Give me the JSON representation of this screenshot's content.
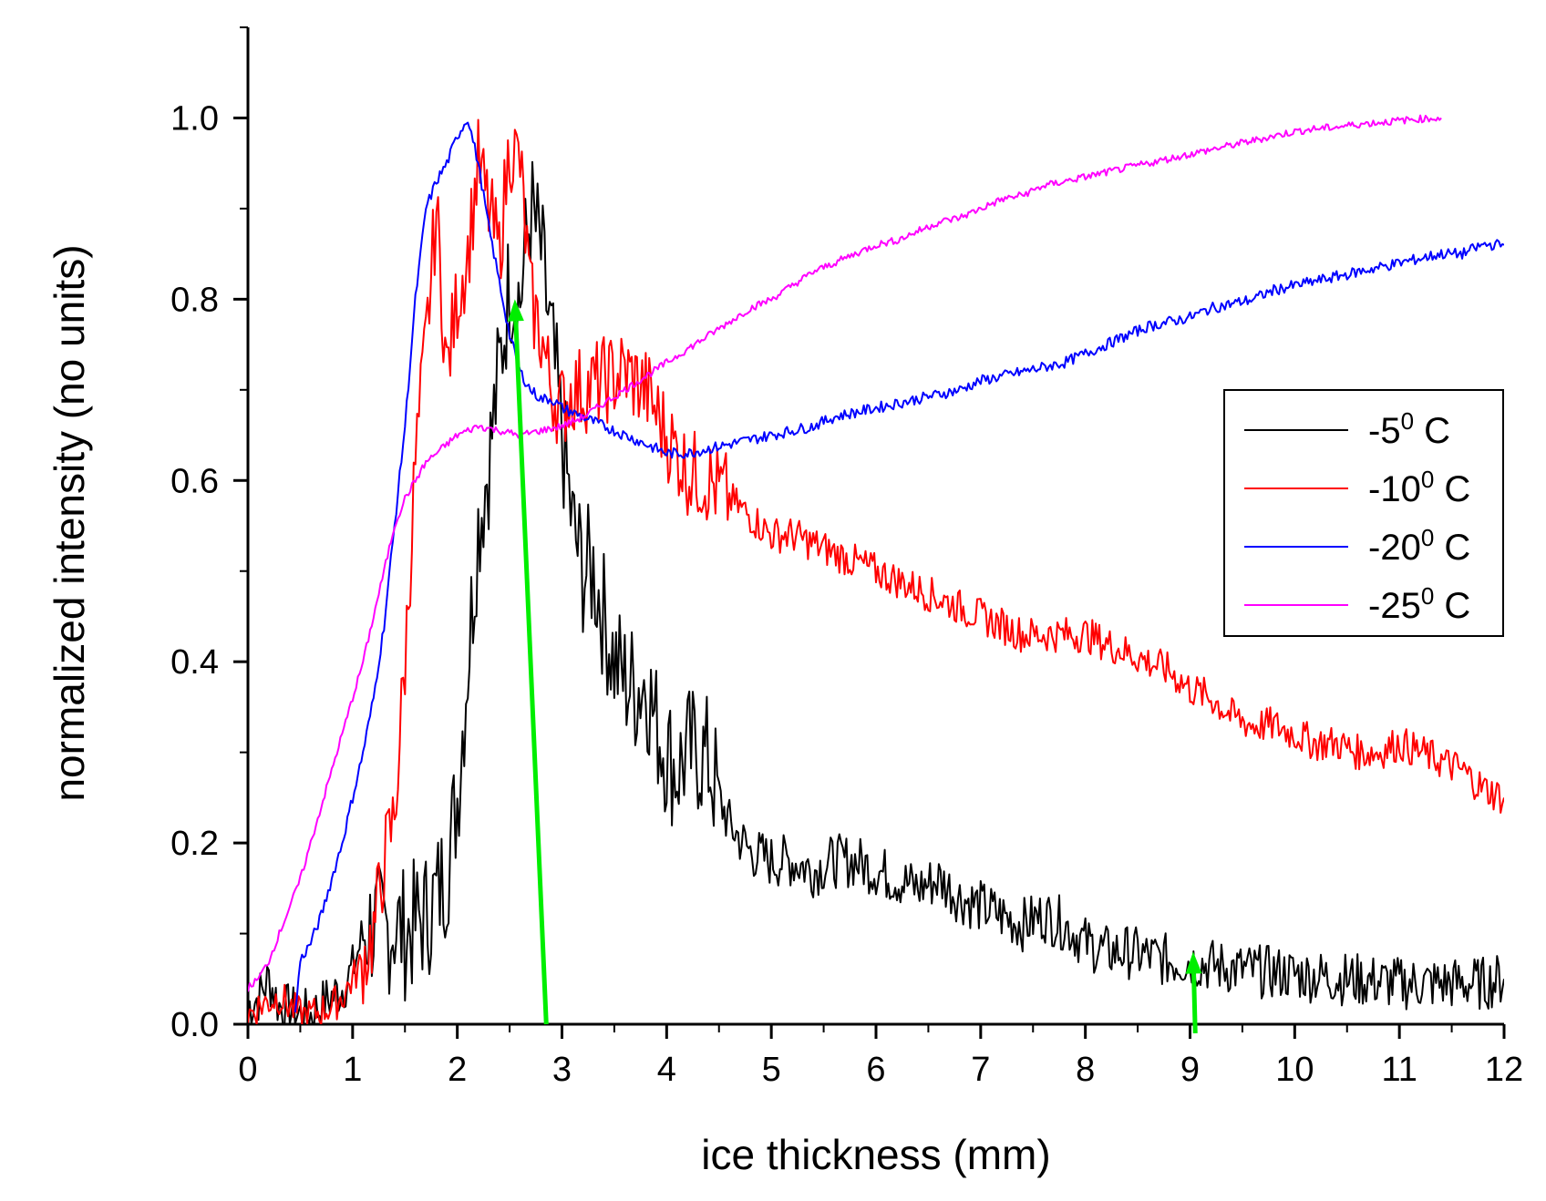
{
  "chart_data": {
    "type": "line",
    "title": "",
    "xlabel": "ice thickness (mm)",
    "ylabel": "normalized intensity (no units)",
    "xlim": [
      0,
      12
    ],
    "ylim": [
      0,
      1.1
    ],
    "xticks": [
      0,
      1,
      2,
      3,
      4,
      5,
      6,
      7,
      8,
      9,
      10,
      11,
      12
    ],
    "xtick_labels": [
      "0",
      "1",
      "2",
      "3",
      "4",
      "5",
      "6",
      "7",
      "8",
      "9",
      "10",
      "11",
      "12"
    ],
    "yticks": [
      0.0,
      0.2,
      0.4,
      0.6,
      0.8,
      1.0
    ],
    "ytick_labels": [
      "0.0",
      "0.2",
      "0.4",
      "0.6",
      "0.8",
      "1.0"
    ],
    "legend_position": "right",
    "grid": false,
    "series": [
      {
        "name": "-5",
        "legend_base": "-5",
        "legend_sup": "0",
        "legend_unit": " C",
        "color": "#000000",
        "x": [
          0,
          0.1,
          0.2,
          0.3,
          0.4,
          0.5,
          0.6,
          0.7,
          0.8,
          0.9,
          1.0,
          1.1,
          1.2,
          1.3,
          1.4,
          1.5,
          1.6,
          1.7,
          1.8,
          1.9,
          2.0,
          2.1,
          2.2,
          2.3,
          2.4,
          2.5,
          2.6,
          2.7,
          2.8,
          2.9,
          3.0,
          3.1,
          3.2,
          3.3,
          3.4,
          3.5,
          3.6,
          3.7,
          3.8,
          3.9,
          4.0,
          4.1,
          4.2,
          4.3,
          4.4,
          4.5,
          4.6,
          4.8,
          5.0,
          5.2,
          5.4,
          5.6,
          5.8,
          6.0,
          6.2,
          6.4,
          6.6,
          6.8,
          7.0,
          7.2,
          7.4,
          7.6,
          7.8,
          8.0,
          8.2,
          8.4,
          8.6,
          8.8,
          9.0,
          9.2,
          9.5,
          10.0,
          10.5,
          11.0,
          11.5,
          11.8,
          12.0
        ],
        "y": [
          0.02,
          0.03,
          0.05,
          0.02,
          0.015,
          0.01,
          0.01,
          0.02,
          0.03,
          0.04,
          0.06,
          0.1,
          0.11,
          0.1,
          0.11,
          0.1,
          0.11,
          0.12,
          0.14,
          0.17,
          0.25,
          0.4,
          0.55,
          0.62,
          0.72,
          0.82,
          0.8,
          0.9,
          0.85,
          0.75,
          0.65,
          0.55,
          0.5,
          0.5,
          0.45,
          0.4,
          0.38,
          0.37,
          0.38,
          0.33,
          0.3,
          0.28,
          0.3,
          0.3,
          0.29,
          0.25,
          0.22,
          0.19,
          0.18,
          0.18,
          0.17,
          0.18,
          0.18,
          0.17,
          0.16,
          0.15,
          0.16,
          0.14,
          0.13,
          0.12,
          0.11,
          0.12,
          0.11,
          0.09,
          0.08,
          0.08,
          0.075,
          0.07,
          0.07,
          0.065,
          0.06,
          0.055,
          0.05,
          0.045,
          0.045,
          0.045,
          0.05
        ]
      },
      {
        "name": "-10",
        "legend_base": "-10",
        "legend_sup": "0",
        "legend_unit": " C",
        "color": "#ff0000",
        "x": [
          0,
          0.1,
          0.2,
          0.3,
          0.4,
          0.5,
          0.6,
          0.7,
          0.8,
          0.9,
          1.0,
          1.1,
          1.2,
          1.3,
          1.4,
          1.5,
          1.6,
          1.7,
          1.8,
          1.9,
          2.0,
          2.1,
          2.2,
          2.3,
          2.4,
          2.5,
          2.6,
          2.7,
          2.8,
          2.9,
          3.0,
          3.1,
          3.2,
          3.4,
          3.6,
          3.8,
          4.0,
          4.2,
          4.4,
          4.6,
          4.8,
          5.0,
          5.2,
          5.4,
          5.6,
          5.8,
          6.0,
          6.2,
          6.4,
          6.6,
          6.8,
          7.0,
          7.2,
          7.4,
          7.6,
          7.8,
          8.0,
          8.2,
          8.4,
          8.6,
          8.8,
          9.0,
          9.2,
          9.4,
          9.6,
          9.8,
          10.0,
          10.2,
          10.4,
          10.6,
          10.8,
          11.0,
          11.2,
          11.4,
          11.6,
          11.8,
          12.0
        ],
        "y": [
          0.01,
          0.02,
          0.025,
          0.03,
          0.02,
          0.01,
          0.01,
          0.015,
          0.02,
          0.03,
          0.05,
          0.07,
          0.1,
          0.18,
          0.23,
          0.4,
          0.62,
          0.75,
          0.9,
          0.72,
          0.8,
          0.85,
          0.95,
          0.9,
          0.85,
          0.97,
          0.95,
          0.8,
          0.76,
          0.7,
          0.68,
          0.7,
          0.7,
          0.71,
          0.72,
          0.7,
          0.65,
          0.61,
          0.6,
          0.58,
          0.56,
          0.54,
          0.54,
          0.53,
          0.52,
          0.51,
          0.5,
          0.49,
          0.48,
          0.47,
          0.46,
          0.45,
          0.44,
          0.43,
          0.43,
          0.43,
          0.43,
          0.42,
          0.41,
          0.4,
          0.39,
          0.37,
          0.36,
          0.34,
          0.33,
          0.33,
          0.32,
          0.31,
          0.31,
          0.3,
          0.3,
          0.31,
          0.3,
          0.29,
          0.28,
          0.26,
          0.25
        ]
      },
      {
        "name": "-20",
        "legend_base": "-20",
        "legend_sup": "0",
        "legend_unit": " C",
        "color": "#0000ff",
        "x": [
          0.45,
          0.5,
          0.6,
          0.7,
          0.8,
          0.9,
          1.0,
          1.1,
          1.2,
          1.3,
          1.4,
          1.5,
          1.6,
          1.7,
          1.8,
          1.9,
          2.0,
          2.1,
          2.2,
          2.3,
          2.4,
          2.5,
          2.6,
          2.7,
          2.8,
          2.9,
          3.0,
          3.2,
          3.4,
          3.6,
          3.8,
          4.0,
          4.2,
          4.4,
          4.6,
          4.8,
          5.0,
          5.2,
          5.4,
          5.6,
          5.8,
          6.0,
          6.2,
          6.4,
          6.6,
          6.8,
          7.0,
          7.2,
          7.4,
          7.6,
          7.8,
          8.0,
          8.2,
          8.4,
          8.6,
          8.8,
          9.0,
          9.2,
          9.4,
          9.6,
          9.8,
          10.0,
          10.2,
          10.4,
          10.6,
          10.8,
          11.0,
          11.2,
          11.4,
          11.6,
          11.8,
          12.0
        ],
        "y": [
          0.01,
          0.07,
          0.09,
          0.12,
          0.16,
          0.2,
          0.25,
          0.3,
          0.36,
          0.44,
          0.55,
          0.66,
          0.8,
          0.9,
          0.93,
          0.95,
          0.98,
          1.0,
          0.95,
          0.88,
          0.82,
          0.76,
          0.72,
          0.7,
          0.69,
          0.69,
          0.68,
          0.67,
          0.66,
          0.65,
          0.64,
          0.63,
          0.63,
          0.635,
          0.64,
          0.645,
          0.65,
          0.655,
          0.66,
          0.67,
          0.675,
          0.68,
          0.685,
          0.69,
          0.695,
          0.7,
          0.71,
          0.715,
          0.72,
          0.725,
          0.73,
          0.74,
          0.75,
          0.76,
          0.77,
          0.775,
          0.78,
          0.79,
          0.795,
          0.8,
          0.81,
          0.815,
          0.82,
          0.825,
          0.83,
          0.835,
          0.84,
          0.845,
          0.85,
          0.85,
          0.86,
          0.86
        ]
      },
      {
        "name": "-25",
        "legend_base": "-25",
        "legend_sup": "0",
        "legend_unit": " C",
        "color": "#ff00ff",
        "x": [
          0,
          0.1,
          0.2,
          0.3,
          0.4,
          0.5,
          0.6,
          0.7,
          0.8,
          0.9,
          1.0,
          1.1,
          1.2,
          1.3,
          1.4,
          1.5,
          1.6,
          1.7,
          1.8,
          1.9,
          2.0,
          2.2,
          2.4,
          2.6,
          2.8,
          3.0,
          3.2,
          3.4,
          3.6,
          3.8,
          4.0,
          4.2,
          4.4,
          4.6,
          4.8,
          5.0,
          5.2,
          5.4,
          5.6,
          5.8,
          6.0,
          6.2,
          6.4,
          6.6,
          6.8,
          7.0,
          7.2,
          7.4,
          7.6,
          7.8,
          8.0,
          8.2,
          8.4,
          8.6,
          8.8,
          9.0,
          9.2,
          9.4,
          9.6,
          9.8,
          10.0,
          10.2,
          10.4,
          10.6,
          10.8,
          11.0,
          11.2,
          11.4
        ],
        "y": [
          0.04,
          0.05,
          0.07,
          0.1,
          0.13,
          0.16,
          0.2,
          0.24,
          0.28,
          0.32,
          0.36,
          0.4,
          0.45,
          0.5,
          0.55,
          0.58,
          0.6,
          0.62,
          0.63,
          0.64,
          0.65,
          0.66,
          0.655,
          0.65,
          0.655,
          0.66,
          0.67,
          0.685,
          0.7,
          0.715,
          0.73,
          0.745,
          0.76,
          0.775,
          0.79,
          0.8,
          0.815,
          0.83,
          0.84,
          0.85,
          0.86,
          0.865,
          0.875,
          0.885,
          0.89,
          0.9,
          0.91,
          0.915,
          0.925,
          0.93,
          0.935,
          0.94,
          0.945,
          0.95,
          0.955,
          0.96,
          0.965,
          0.97,
          0.975,
          0.98,
          0.985,
          0.988,
          0.99,
          0.993,
          0.995,
          0.997,
          0.999,
          1.0
        ]
      }
    ],
    "annotations": [
      {
        "type": "arrow",
        "color": "#00ee00",
        "from": [
          2.85,
          0.0
        ],
        "to": [
          2.55,
          0.8
        ]
      },
      {
        "type": "arrow",
        "color": "#00ee00",
        "from": [
          9.05,
          -0.01
        ],
        "to": [
          9.03,
          0.08
        ]
      }
    ]
  }
}
